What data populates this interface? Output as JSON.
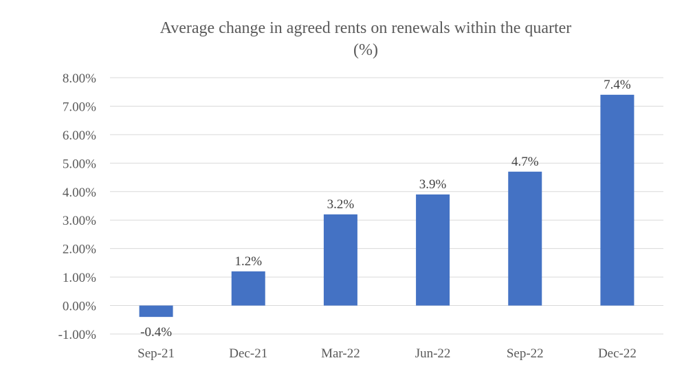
{
  "chart_data": {
    "type": "bar",
    "title": "Average change in agreed rents on renewals within the quarter",
    "subtitle": "(%)",
    "categories": [
      "Sep-21",
      "Dec-21",
      "Mar-22",
      "Jun-22",
      "Sep-22",
      "Dec-22"
    ],
    "values": [
      -0.4,
      1.2,
      3.2,
      3.9,
      4.7,
      7.4
    ],
    "data_labels": [
      "-0.4%",
      "1.2%",
      "3.2%",
      "3.9%",
      "4.7%",
      "7.4%"
    ],
    "ylim": [
      -1.0,
      8.0
    ],
    "yticks": [
      -1.0,
      0.0,
      1.0,
      2.0,
      3.0,
      4.0,
      5.0,
      6.0,
      7.0,
      8.0
    ],
    "ytick_labels": [
      "-1.00%",
      "0.00%",
      "1.00%",
      "2.00%",
      "3.00%",
      "4.00%",
      "5.00%",
      "6.00%",
      "7.00%",
      "8.00%"
    ],
    "xlabel": "",
    "ylabel": "",
    "grid": true,
    "legend": "none",
    "colors": {
      "bar": "#4472c4",
      "grid": "#d9d9d9",
      "text": "#595959"
    }
  }
}
